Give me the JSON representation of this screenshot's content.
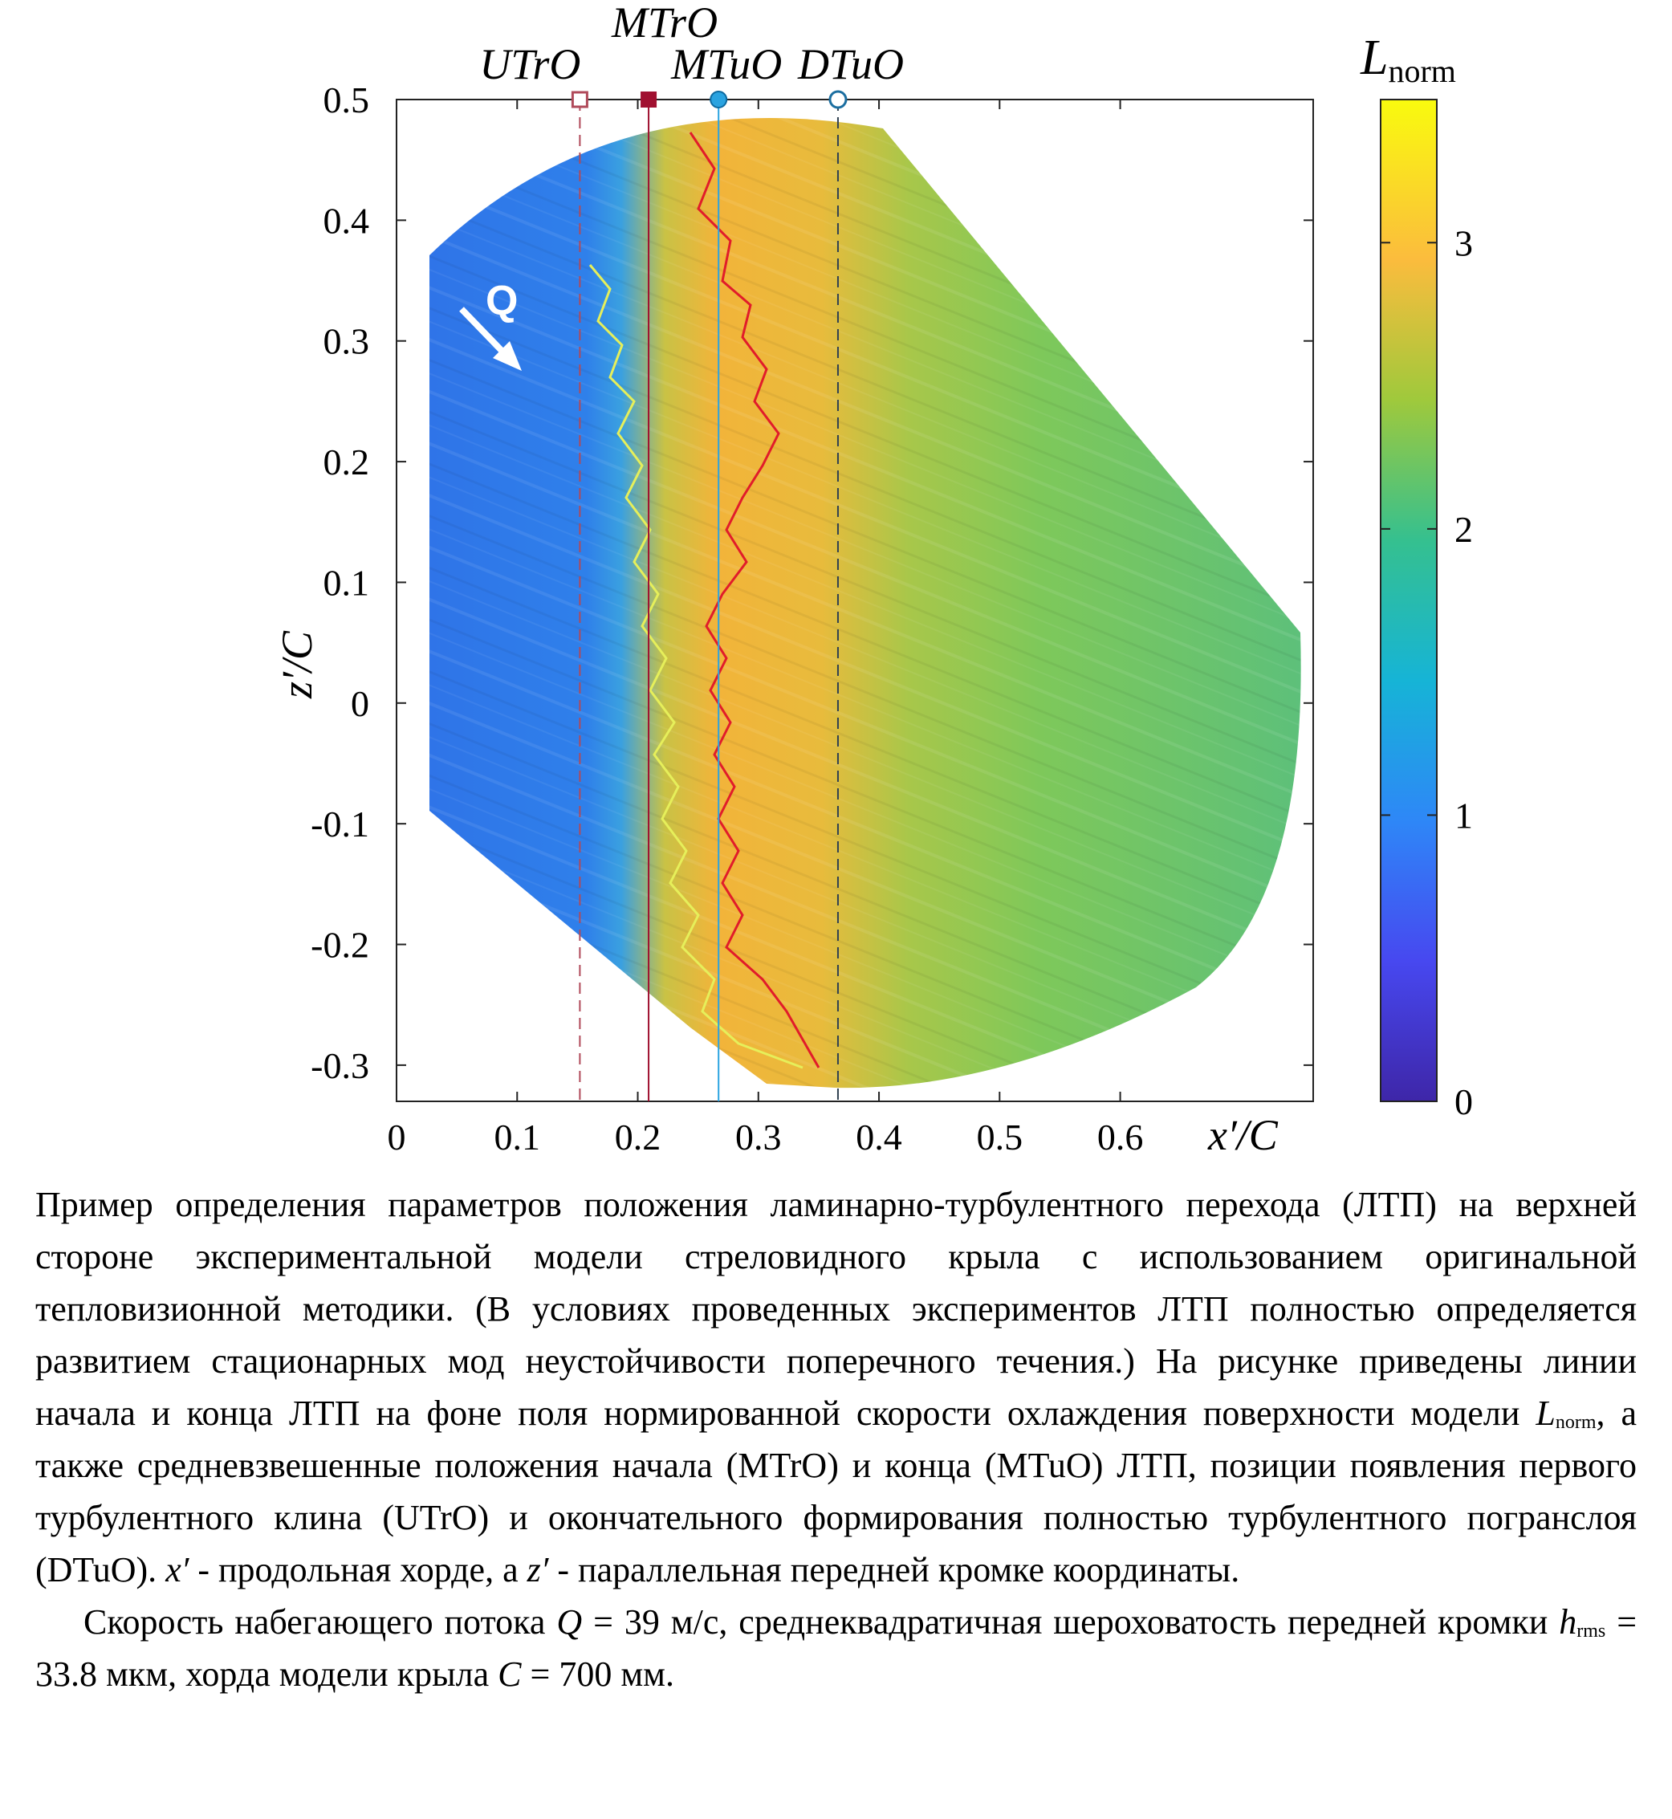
{
  "figure": {
    "x_axis_label": "x′/C",
    "y_axis_label": "z′/C",
    "x_ticks": [
      "0",
      "0.1",
      "0.2",
      "0.3",
      "0.4",
      "0.5",
      "0.6"
    ],
    "y_ticks": [
      "0.5",
      "0.4",
      "0.3",
      "0.2",
      "0.1",
      "0",
      "-0.1",
      "-0.2",
      "-0.3"
    ],
    "colorbar_label": "L",
    "colorbar_label_sub": "norm",
    "colorbar_ticks": [
      "3",
      "2",
      "1",
      "0"
    ],
    "flow_label": "Q",
    "markers": [
      {
        "label": "UTrO",
        "x": 0.152,
        "line": "dashed",
        "color": "#b04a5a"
      },
      {
        "label": "MTrO",
        "x": 0.209,
        "line": "solid",
        "color": "#a01030"
      },
      {
        "label": "MTuO",
        "x": 0.267,
        "line": "solid",
        "color": "#2aa3e0"
      },
      {
        "label": "DTuO",
        "x": 0.366,
        "line": "dashed",
        "color": "#304050"
      }
    ]
  },
  "chart_data": {
    "type": "heatmap",
    "xlabel": "x′/C",
    "ylabel": "z′/C",
    "xlim": [
      0,
      0.76
    ],
    "ylim": [
      -0.33,
      0.5
    ],
    "colorbar": {
      "label": "L_norm",
      "range": [
        0,
        3.5
      ],
      "ticks": [
        0,
        1,
        2,
        3
      ]
    },
    "vertical_lines": [
      {
        "name": "UTrO",
        "x": 0.152
      },
      {
        "name": "MTrO",
        "x": 0.209
      },
      {
        "name": "MTuO",
        "x": 0.267
      },
      {
        "name": "DTuO",
        "x": 0.366
      }
    ],
    "regions": [
      {
        "x_range": [
          0.03,
          0.15
        ],
        "L_norm": 1.0
      },
      {
        "x_range": [
          0.15,
          0.3
        ],
        "L_norm": 2.8
      },
      {
        "x_range": [
          0.3,
          0.4
        ],
        "L_norm": 2.9
      },
      {
        "x_range": [
          0.4,
          0.75
        ],
        "L_norm": 2.2
      }
    ]
  },
  "caption": {
    "p1_part1": "Пример определения параметров положения ламинарно-турбулентного перехода (ЛТП) на верхней стороне экспериментальной модели стреловидного крыла с использованием оригинальной тепловизионной методики. (В условиях проведенных экспериментов ЛТП полностью определяется развитием стационарных мод неустойчивости поперечного течения.) На рисунке приведены линии начала и конца ЛТП на фоне поля нормированной скорости охлаждения поверхности модели",
    "p1_L": "L",
    "p1_L_sub": "norm",
    "p1_part2": ", а также средневзвешенные положения начала (MTrO) и конца (MTuO) ЛТП, позиции появления первого турбулентного клина (UTrO) и окончательного формирования полностью турбулентного погранслоя (DTuO).",
    "p1_x": "x′",
    "p1_part3": "- продольная хорде, а",
    "p1_z": "z′",
    "p1_part4": "- параллельная передней кромке координаты.",
    "p2_part1": "Скорость набегающего потока",
    "p2_Q": "Q",
    "p2_part2": "= 39 м/с, среднеквадратичная шероховатость передней кромки",
    "p2_h": "h",
    "p2_h_sub": "rms",
    "p2_part3": "= 33.8 мкм, хорда модели крыла",
    "p2_C": "C",
    "p2_part4": "= 700 мм."
  }
}
